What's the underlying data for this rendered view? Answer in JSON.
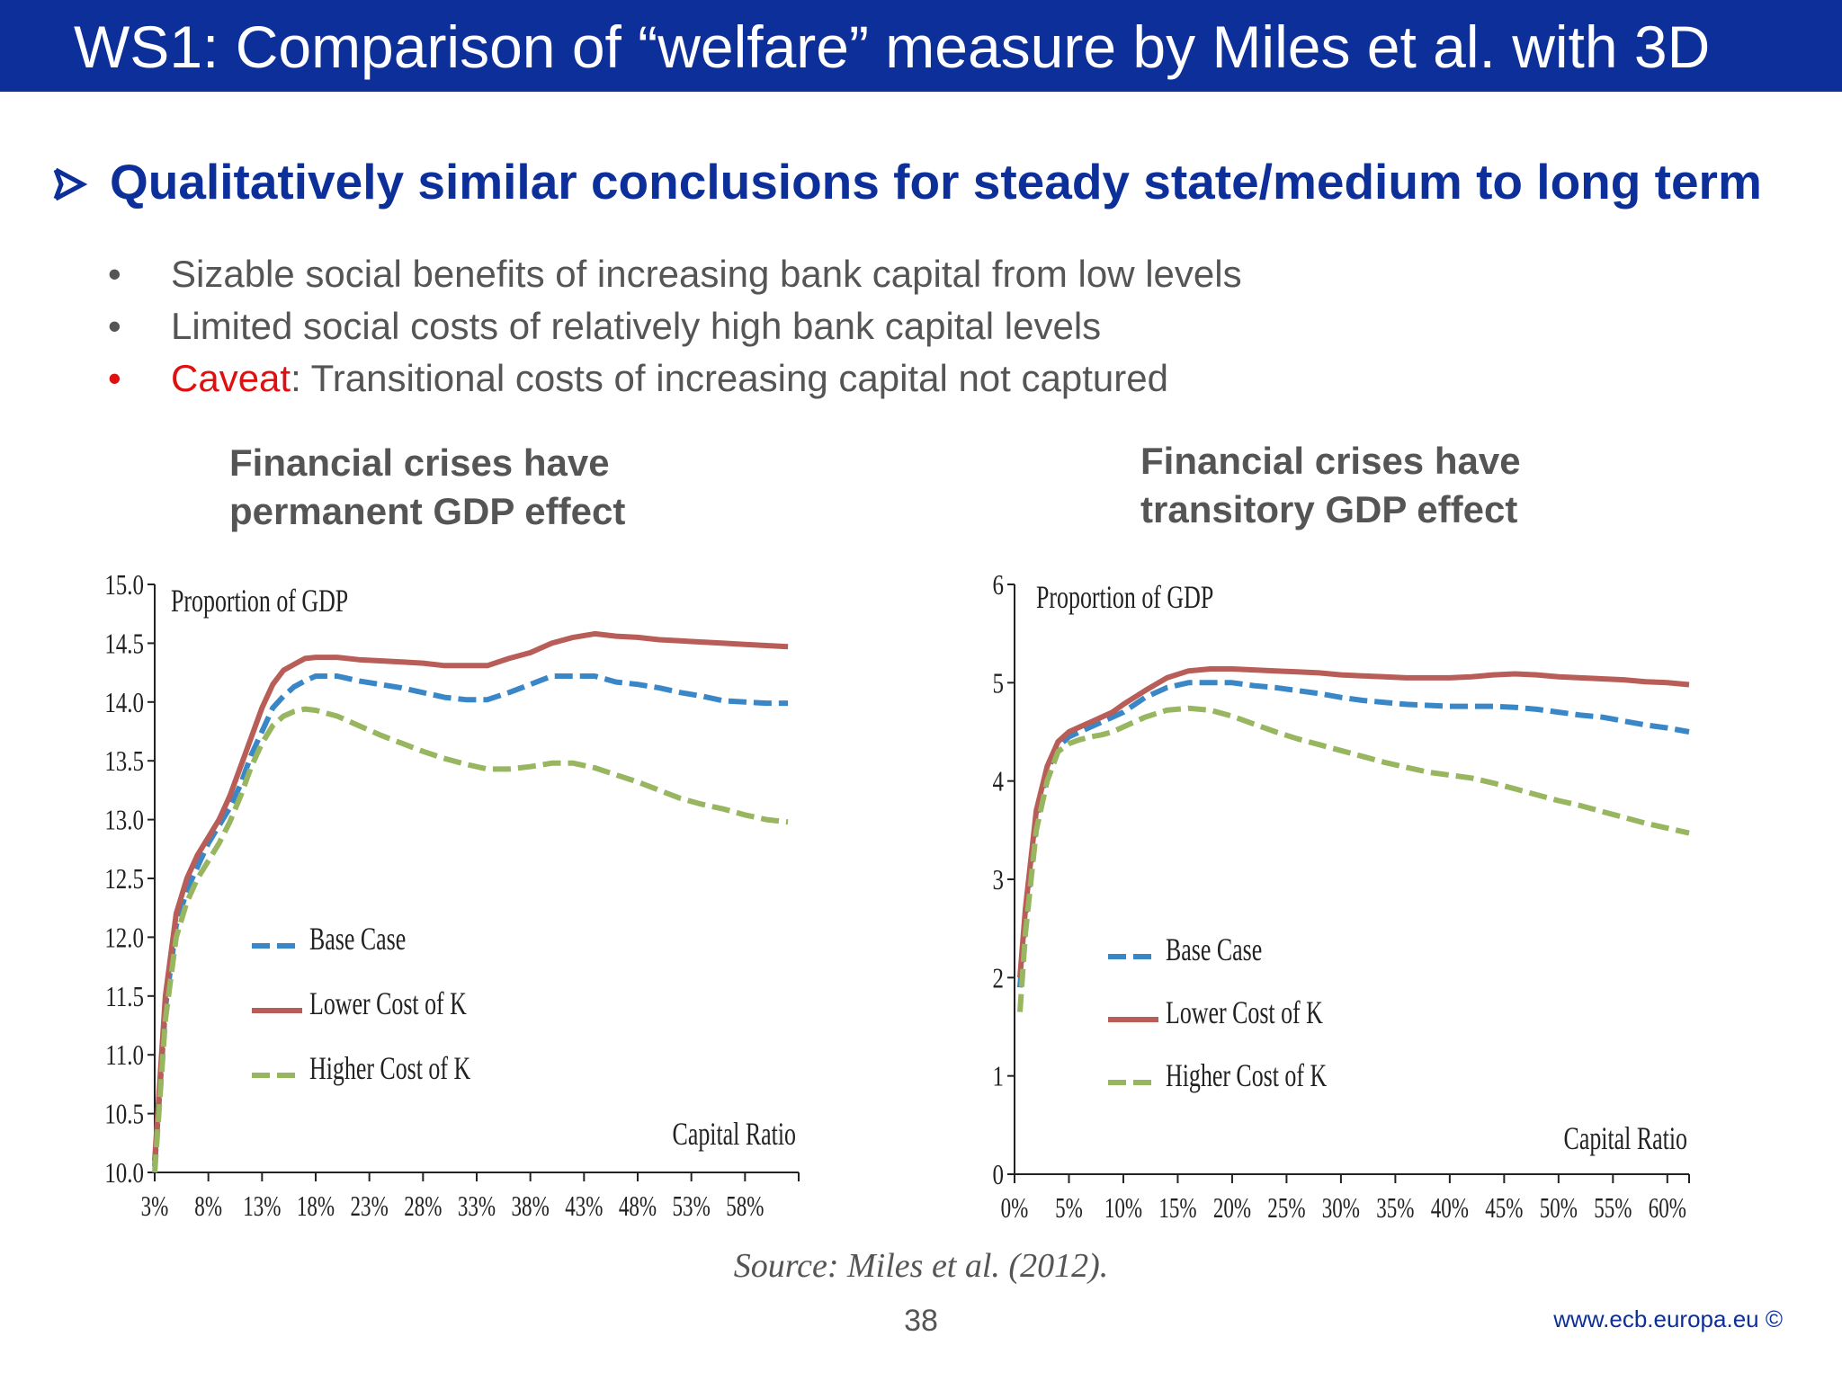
{
  "header": {
    "title": "WS1: Comparison of “welfare” measure by Miles et al. with 3D"
  },
  "headline": {
    "text": "Qualitatively similar conclusions for steady state/medium to long term"
  },
  "bullets": {
    "b1": "Sizable social benefits of increasing bank capital from low levels",
    "b2": "Limited social costs of relatively high bank capital levels",
    "b3_highlight": "Caveat",
    "b3_rest": ": Transitional costs of increasing capital not captured"
  },
  "colors": {
    "brand": "#0d2f9a",
    "base": "#3a87c8",
    "lower": "#b85d57",
    "higher": "#98b55f",
    "caveat": "#e01010"
  },
  "chart_data": [
    {
      "type": "line",
      "title": "Financial crises have permanent GDP effect",
      "ylabel": "Proportion of GDP",
      "xlabel": "Capital Ratio",
      "ylim": [
        10.0,
        15.0
      ],
      "xlim": [
        3,
        63
      ],
      "yticks": [
        "10.0",
        "10.5",
        "11.0",
        "11.5",
        "12.0",
        "12.5",
        "13.0",
        "13.5",
        "14.0",
        "14.5",
        "15.0"
      ],
      "xticks": [
        "3%",
        "8%",
        "13%",
        "18%",
        "23%",
        "28%",
        "33%",
        "38%",
        "43%",
        "48%",
        "53%",
        "58%"
      ],
      "legend_position": "lower-left",
      "x": [
        3,
        4,
        5,
        6,
        7,
        8,
        9,
        10,
        11,
        12,
        13,
        14,
        15,
        16,
        17,
        18,
        20,
        22,
        24,
        26,
        28,
        30,
        32,
        34,
        36,
        38,
        40,
        42,
        44,
        46,
        48,
        50,
        52,
        54,
        56,
        58,
        60,
        62
      ],
      "series": [
        {
          "name": "Base Case",
          "style": "dashed",
          "values": [
            10.05,
            11.4,
            12.1,
            12.4,
            12.6,
            12.8,
            12.95,
            13.1,
            13.3,
            13.55,
            13.75,
            13.95,
            14.05,
            14.13,
            14.18,
            14.22,
            14.22,
            14.18,
            14.15,
            14.12,
            14.08,
            14.04,
            14.02,
            14.02,
            14.08,
            14.15,
            14.22,
            14.22,
            14.22,
            14.17,
            14.15,
            14.12,
            14.08,
            14.05,
            14.01,
            14.0,
            13.99,
            13.99
          ]
        },
        {
          "name": "Lower Cost of K",
          "style": "solid",
          "values": [
            10.1,
            11.5,
            12.2,
            12.5,
            12.7,
            12.85,
            13.0,
            13.2,
            13.45,
            13.7,
            13.95,
            14.15,
            14.27,
            14.32,
            14.37,
            14.38,
            14.38,
            14.36,
            14.35,
            14.34,
            14.33,
            14.31,
            14.31,
            14.31,
            14.37,
            14.42,
            14.5,
            14.55,
            14.58,
            14.56,
            14.55,
            14.53,
            14.52,
            14.51,
            14.5,
            14.49,
            14.48,
            14.47
          ]
        },
        {
          "name": "Higher Cost of K",
          "style": "dashed",
          "values": [
            10.0,
            11.3,
            12.0,
            12.3,
            12.5,
            12.65,
            12.8,
            12.98,
            13.2,
            13.45,
            13.65,
            13.8,
            13.88,
            13.92,
            13.94,
            13.93,
            13.88,
            13.8,
            13.72,
            13.65,
            13.58,
            13.52,
            13.47,
            13.43,
            13.43,
            13.45,
            13.48,
            13.48,
            13.44,
            13.38,
            13.32,
            13.25,
            13.18,
            13.13,
            13.09,
            13.04,
            13.0,
            12.98
          ]
        }
      ]
    },
    {
      "type": "line",
      "title": "Financial crises have transitory GDP effect",
      "ylabel": "Proportion of GDP",
      "xlabel": "Capital Ratio",
      "ylim": [
        0,
        6
      ],
      "xlim": [
        0,
        62
      ],
      "yticks": [
        "0",
        "1",
        "2",
        "3",
        "4",
        "5",
        "6"
      ],
      "xticks": [
        "0%",
        "5%",
        "10%",
        "15%",
        "20%",
        "25%",
        "30%",
        "35%",
        "40%",
        "45%",
        "50%",
        "55%",
        "60%"
      ],
      "legend_position": "lower-left",
      "x": [
        0.5,
        1,
        2,
        3,
        4,
        5,
        6,
        7,
        8,
        9,
        10,
        12,
        14,
        16,
        18,
        20,
        22,
        24,
        26,
        28,
        30,
        32,
        34,
        36,
        38,
        40,
        42,
        44,
        46,
        48,
        50,
        52,
        54,
        56,
        58,
        60,
        62
      ],
      "series": [
        {
          "name": "Base Case",
          "style": "dashed",
          "values": [
            1.9,
            2.6,
            3.6,
            4.1,
            4.35,
            4.45,
            4.5,
            4.55,
            4.6,
            4.65,
            4.7,
            4.85,
            4.95,
            5.0,
            5.0,
            5.0,
            4.97,
            4.95,
            4.92,
            4.89,
            4.85,
            4.82,
            4.8,
            4.78,
            4.77,
            4.76,
            4.76,
            4.76,
            4.75,
            4.73,
            4.7,
            4.67,
            4.65,
            4.61,
            4.57,
            4.54,
            4.5
          ]
        },
        {
          "name": "Lower Cost of K",
          "style": "solid",
          "values": [
            2.0,
            2.7,
            3.7,
            4.15,
            4.4,
            4.5,
            4.55,
            4.6,
            4.65,
            4.7,
            4.78,
            4.92,
            5.05,
            5.12,
            5.14,
            5.14,
            5.13,
            5.12,
            5.11,
            5.1,
            5.08,
            5.07,
            5.06,
            5.05,
            5.05,
            5.05,
            5.06,
            5.08,
            5.09,
            5.08,
            5.06,
            5.05,
            5.04,
            5.03,
            5.01,
            5.0,
            4.98
          ]
        },
        {
          "name": "Higher Cost of K",
          "style": "dashed",
          "values": [
            1.65,
            2.45,
            3.5,
            4.0,
            4.3,
            4.38,
            4.42,
            4.45,
            4.47,
            4.5,
            4.55,
            4.65,
            4.72,
            4.74,
            4.72,
            4.66,
            4.58,
            4.5,
            4.43,
            4.37,
            4.31,
            4.25,
            4.19,
            4.14,
            4.09,
            4.06,
            4.03,
            3.98,
            3.92,
            3.86,
            3.8,
            3.75,
            3.69,
            3.63,
            3.57,
            3.52,
            3.47
          ]
        }
      ]
    }
  ],
  "source": "Source: Miles et al. (2012).",
  "footer": {
    "page": "38",
    "url": "www.ecb.europa.eu ©"
  }
}
